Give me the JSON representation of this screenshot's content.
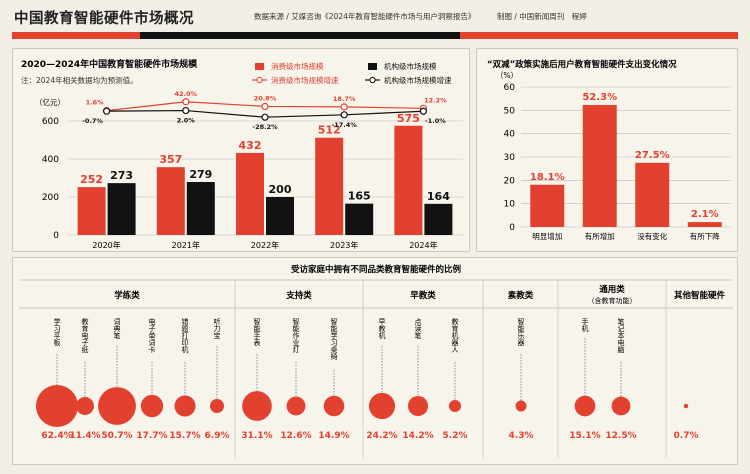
{
  "header": {
    "title": "中国教育智能硬件市场概况",
    "source": "数据来源 / 艾媒咨询《2024年教育智能硬件市场与用户洞察报告》",
    "credit": "制图 / 中国新闻周刊　程婷"
  },
  "colors": {
    "red": "#e3412f",
    "black": "#111111",
    "bg": "#f3efe6"
  },
  "chart_data": [
    {
      "type": "bar",
      "title": "2020—2024年中国教育智能硬件市场规模",
      "note": "注：2024年相关数据均为预测值。",
      "ylabel": "（亿元）",
      "ylim": [
        0,
        600
      ],
      "yticks": [
        "0",
        "200",
        "400",
        "600"
      ],
      "categories": [
        "2020年",
        "2021年",
        "2022年",
        "2023年",
        "2024年"
      ],
      "series": [
        {
          "name": "消费级市场规模",
          "values": [
            252,
            357,
            432,
            512,
            575
          ]
        },
        {
          "name": "机构级市场规模",
          "values": [
            273,
            279,
            200,
            165,
            164
          ]
        }
      ],
      "growth_series": [
        {
          "name": "消费级市场规模增速",
          "values": [
            1.6,
            42.0,
            20.8,
            18.7,
            12.2
          ],
          "labels": [
            "1.6%",
            "42.0%",
            "20.8%",
            "18.7%",
            "12.2%"
          ]
        },
        {
          "name": "机构级市场规模增速",
          "values": [
            -0.7,
            2.0,
            -28.2,
            -17.4,
            -1.0
          ],
          "labels": [
            "-0.7%",
            "2.0%",
            "-28.2%",
            "-17.4%",
            "-1.0%"
          ]
        }
      ]
    },
    {
      "type": "bar",
      "title": "“双减”政策实施后用户教育智能硬件支出变化情况",
      "ylabel": "（%）",
      "ylim": [
        0,
        60
      ],
      "yticks": [
        "0",
        "10",
        "20",
        "30",
        "40",
        "50",
        "60"
      ],
      "categories": [
        "明显增加",
        "有所增加",
        "没有变化",
        "有所下降"
      ],
      "values": [
        18.1,
        52.3,
        27.5,
        2.1
      ],
      "labels": [
        "18.1%",
        "52.3%",
        "27.5%",
        "2.1%"
      ]
    },
    {
      "type": "scatter",
      "title": "受访家庭中拥有不同品类教育智能硬件的比例",
      "groups": [
        {
          "name": "学练类",
          "sub": "",
          "items": [
            {
              "name": "学习平板",
              "value": 62.4,
              "label": "62.4%"
            },
            {
              "name": "教育电子纸",
              "value": 11.4,
              "label": "11.4%"
            },
            {
              "name": "词典笔",
              "value": 50.7,
              "label": "50.7%"
            },
            {
              "name": "电子单词卡",
              "value": 17.7,
              "label": "17.7%"
            },
            {
              "name": "错题打印机",
              "value": 15.7,
              "label": "15.7%"
            },
            {
              "name": "听力宝",
              "value": 6.9,
              "label": "6.9%"
            }
          ]
        },
        {
          "name": "支持类",
          "sub": "",
          "items": [
            {
              "name": "智能手表",
              "value": 31.1,
              "label": "31.1%"
            },
            {
              "name": "智能作业灯",
              "value": 12.6,
              "label": "12.6%"
            },
            {
              "name": "智能学习桌椅",
              "value": 14.9,
              "label": "14.9%"
            }
          ]
        },
        {
          "name": "早教类",
          "sub": "",
          "items": [
            {
              "name": "早教机",
              "value": 24.2,
              "label": "24.2%"
            },
            {
              "name": "点读笔",
              "value": 14.2,
              "label": "14.2%"
            },
            {
              "name": "教育机器人",
              "value": 5.2,
              "label": "5.2%"
            }
          ]
        },
        {
          "name": "素教类",
          "sub": "",
          "items": [
            {
              "name": "智能乐器",
              "value": 4.3,
              "label": "4.3%"
            }
          ]
        },
        {
          "name": "通用类",
          "sub": "（含教育功能）",
          "items": [
            {
              "name": "手机",
              "value": 15.1,
              "label": "15.1%"
            },
            {
              "name": "笔记本电脑",
              "value": 12.5,
              "label": "12.5%"
            }
          ]
        },
        {
          "name": "其他智能硬件",
          "sub": "",
          "items": [
            {
              "name": "",
              "value": 0.7,
              "label": "0.7%"
            }
          ]
        }
      ]
    }
  ]
}
